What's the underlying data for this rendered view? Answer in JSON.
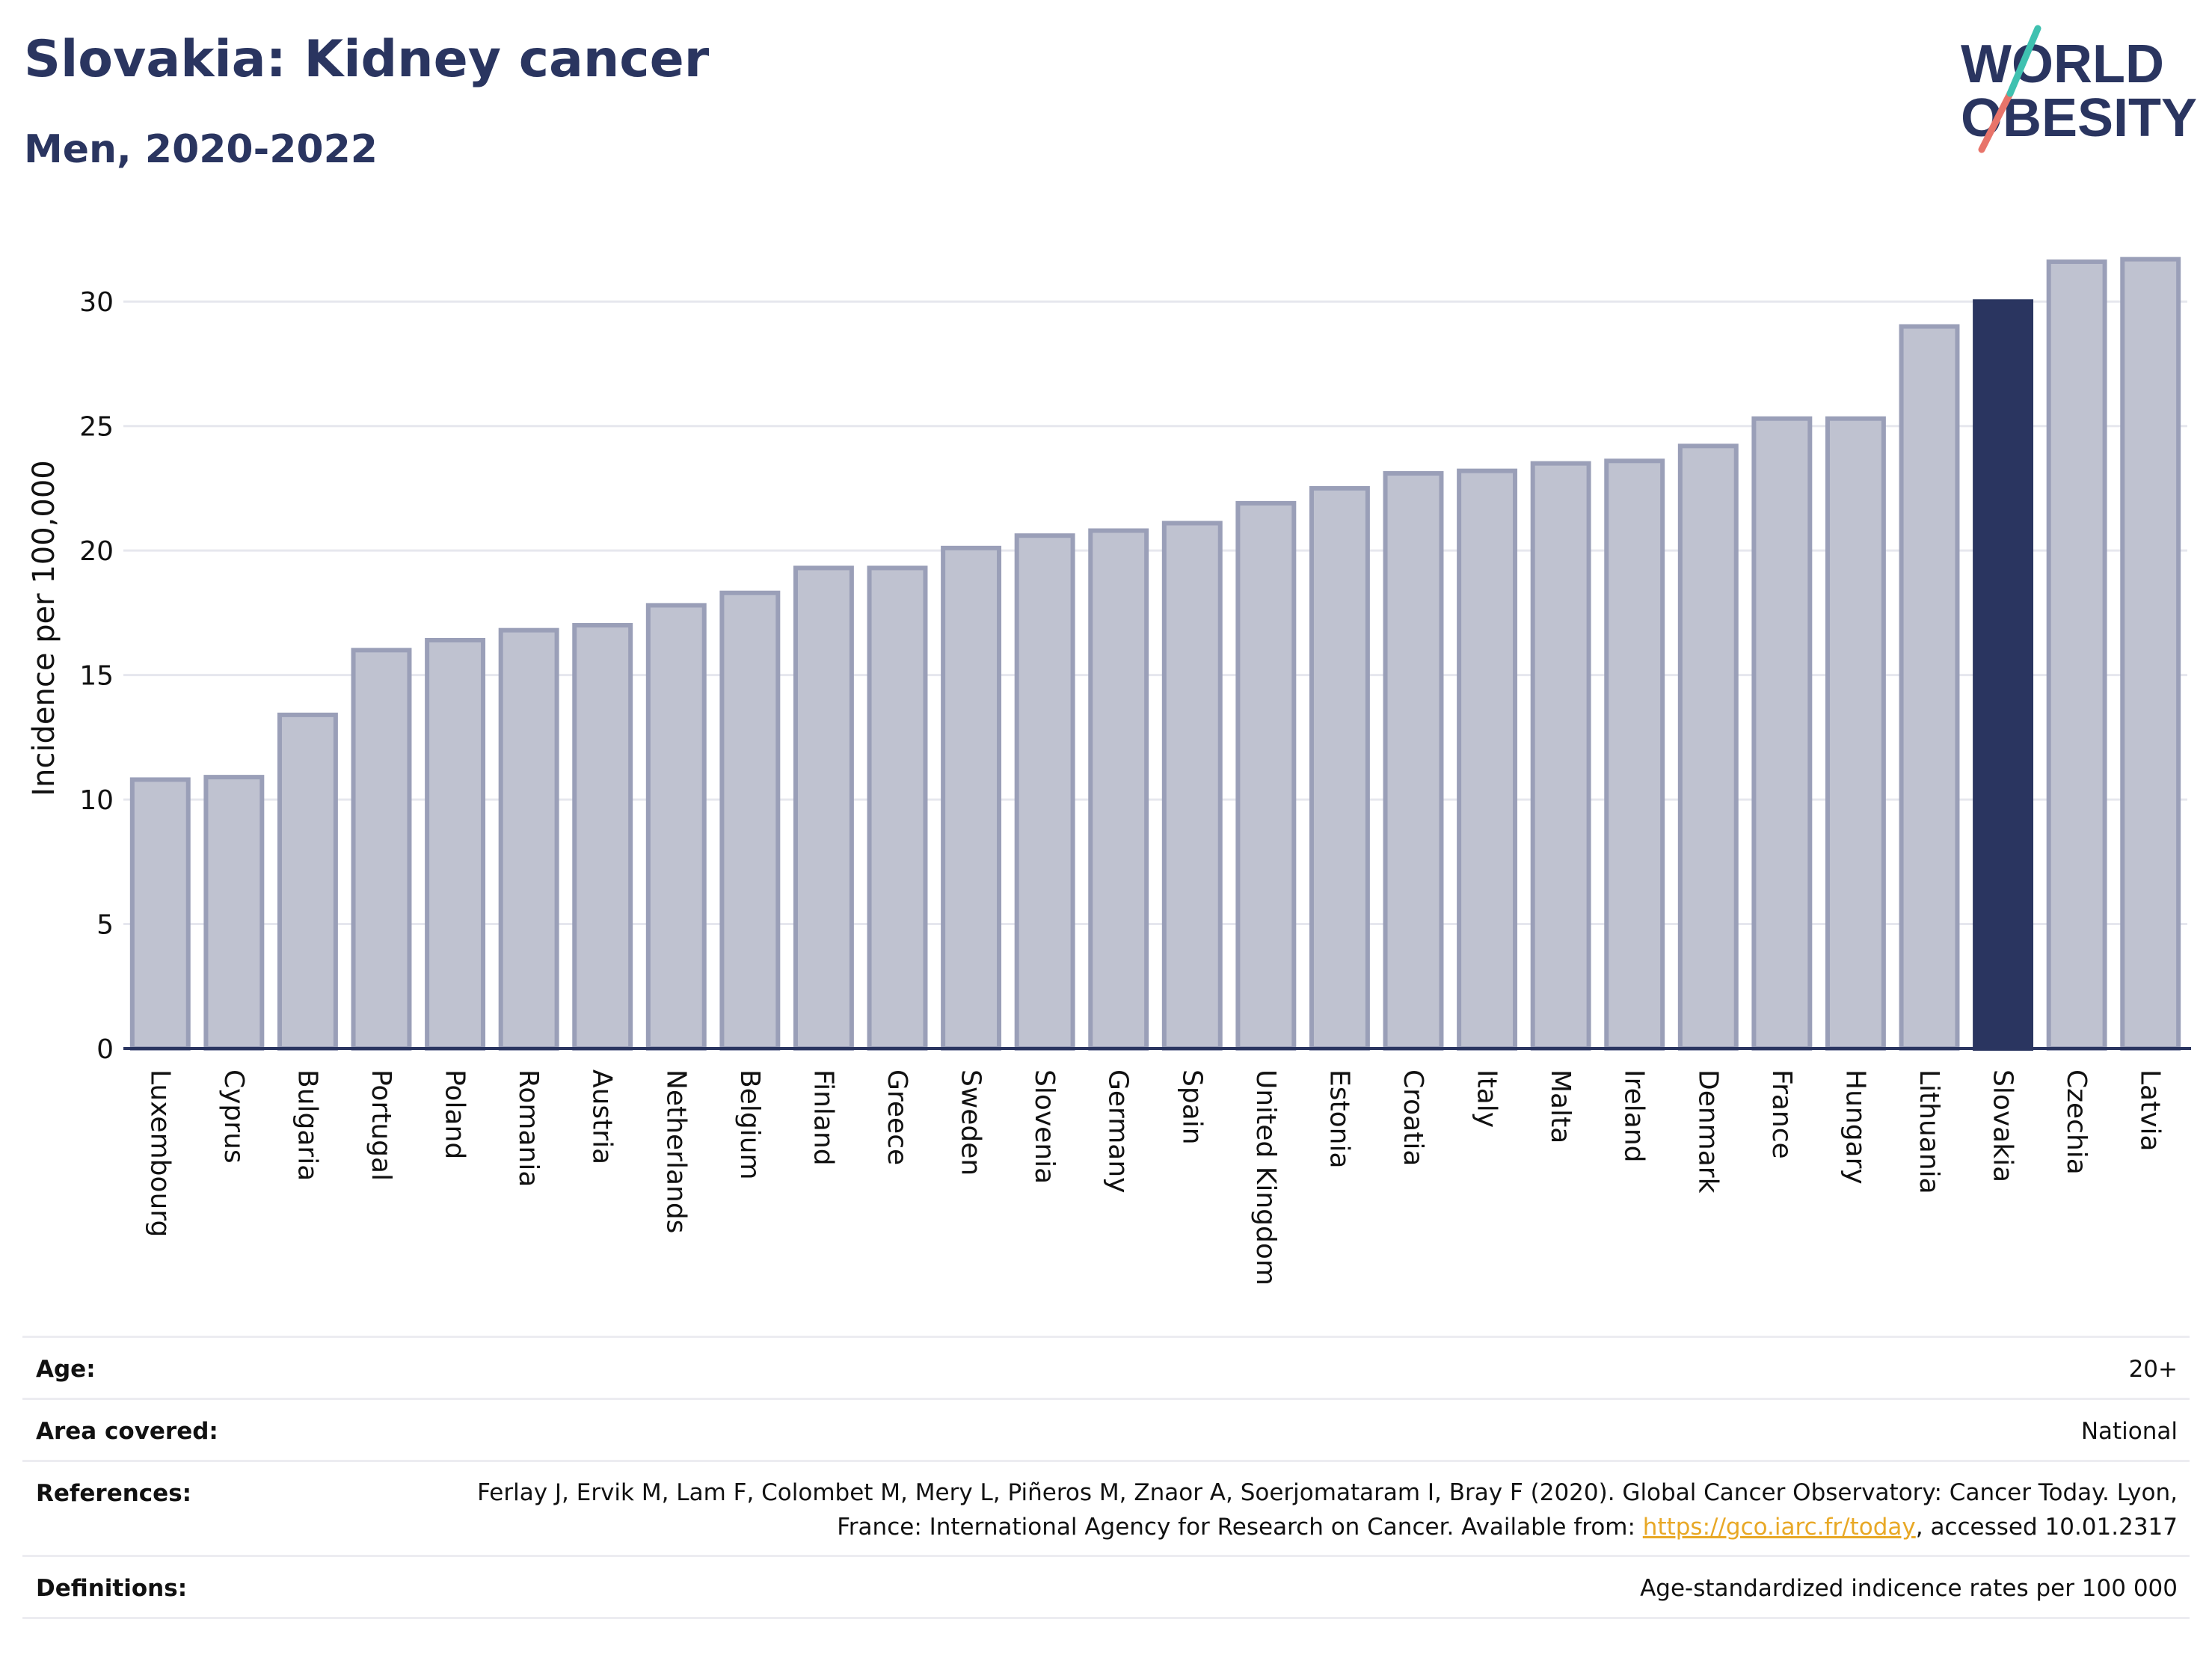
{
  "header": {
    "title": "Slovakia: Kidney cancer",
    "subtitle": "Men, 2020-2022"
  },
  "logo": {
    "line1": "WORLD",
    "line2": "OBESITY"
  },
  "chart_data": {
    "type": "bar",
    "ylabel": "Incidence per 100,000",
    "ylim": [
      0,
      32.5
    ],
    "yticks": [
      0,
      5,
      10,
      15,
      20,
      25,
      30
    ],
    "grid": true,
    "highlight": "Slovakia",
    "colors": {
      "bar": "#bfc2d0",
      "bar_border": "#9a9fb8",
      "highlight": "#2a3560",
      "axis": "#2a3560"
    },
    "categories": [
      "Luxembourg",
      "Cyprus",
      "Bulgaria",
      "Portugal",
      "Poland",
      "Romania",
      "Austria",
      "Netherlands",
      "Belgium",
      "Finland",
      "Greece",
      "Sweden",
      "Slovenia",
      "Germany",
      "Spain",
      "United Kingdom",
      "Estonia",
      "Croatia",
      "Italy",
      "Malta",
      "Ireland",
      "Denmark",
      "France",
      "Hungary",
      "Lithuania",
      "Slovakia",
      "Czechia",
      "Latvia"
    ],
    "values": [
      10.8,
      10.9,
      13.4,
      16.0,
      16.4,
      16.8,
      17.0,
      17.8,
      18.3,
      19.3,
      19.3,
      20.1,
      20.6,
      20.8,
      21.1,
      21.9,
      22.5,
      23.1,
      23.2,
      23.5,
      23.6,
      24.2,
      25.3,
      25.3,
      29.0,
      30.0,
      31.6,
      31.7
    ]
  },
  "meta": {
    "age_label": "Age:",
    "age_value": "20+",
    "area_label": "Area covered:",
    "area_value": "National",
    "references_label": "References:",
    "references_text_1": "Ferlay J, Ervik M, Lam F, Colombet M, Mery L, Piñeros M, Znaor A, Soerjomataram I, Bray F (2020). Global Cancer Observatory: Cancer Today. Lyon, France: International Agency for Research on Cancer. Available from: ",
    "references_link": "https://gco.iarc.fr/today",
    "references_text_2": ", accessed 10.01.2317",
    "definitions_label": "Definitions:",
    "definitions_value": "Age-standardized indicence rates per 100 000"
  }
}
